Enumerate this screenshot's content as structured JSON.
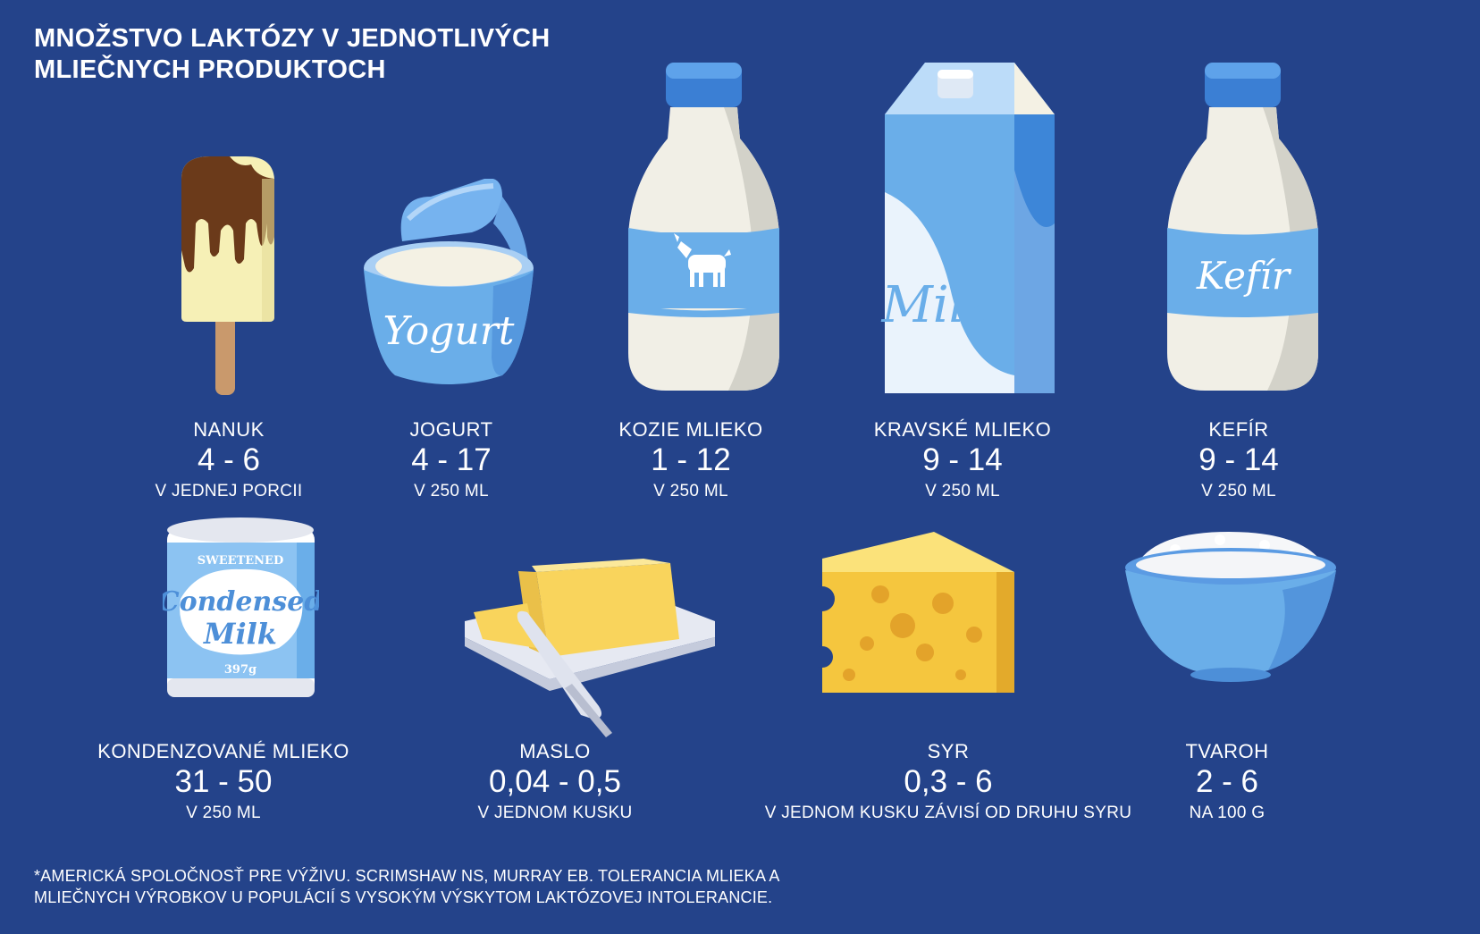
{
  "title": {
    "line1": "MNOŽSTVO LAKTÓZY V JEDNOTLIVÝCH",
    "line2": "MLIEČNYCH PRODUKTOCH"
  },
  "products": [
    {
      "id": "nanuk",
      "name": "NANUK",
      "value": "4 - 6",
      "unit": "V JEDNEJ PORCII",
      "icon": "ice-cream-bar-icon"
    },
    {
      "id": "jogurt",
      "name": "JOGURT",
      "value": "4 - 17",
      "unit": "V 250 ML",
      "icon": "yogurt-cup-icon",
      "art_text": "Yogurt"
    },
    {
      "id": "kozie",
      "name": "KOZIE MLIEKO",
      "value": "1 - 12",
      "unit": "V 250 ML",
      "icon": "goat-milk-bottle-icon"
    },
    {
      "id": "kravske",
      "name": "KRAVSKÉ MLIEKO",
      "value": "9 - 14",
      "unit": "V 250 ML",
      "icon": "milk-carton-icon",
      "art_text": "Milk"
    },
    {
      "id": "kefir",
      "name": "KEFÍR",
      "value": "9 - 14",
      "unit": "V 250 ML",
      "icon": "kefir-bottle-icon",
      "art_text": "Kefír"
    },
    {
      "id": "kondenzovane",
      "name": "KONDENZOVANÉ MLIEKO",
      "value": "31 - 50",
      "unit": "V 250 ML",
      "icon": "condensed-milk-can-icon",
      "art_text_top": "SWEETENED",
      "art_text_main1": "Condensed",
      "art_text_main2": "Milk",
      "art_text_weight": "397g"
    },
    {
      "id": "maslo",
      "name": "MASLO",
      "value": "0,04 - 0,5",
      "unit": "V JEDNOM KUSKU",
      "icon": "butter-dish-icon"
    },
    {
      "id": "syr",
      "name": "SYR",
      "value": "0,3 - 6",
      "unit": "V JEDNOM KUSKU ZÁVISÍ OD DRUHU SYRU",
      "icon": "cheese-wedge-icon"
    },
    {
      "id": "tvaroh",
      "name": "TVAROH",
      "value": "2 - 6",
      "unit": "NA 100 G",
      "icon": "cottage-cheese-bowl-icon"
    }
  ],
  "footnote": {
    "line1": "*AMERICKÁ SPOLOČNOSŤ PRE VÝŽIVU. SCRIMSHAW NS, MURRAY EB. TOLERANCIA MLIEKA A",
    "line2": "MLIEČNYCH VÝROBKOV U POPULÁCIÍ S VYSOKÝM VÝSKYTOM LAKTÓZOVEJ INTOLERANCIE."
  },
  "colors": {
    "background": "#24438a",
    "light_blue": "#6aaee9",
    "mid_blue": "#4d8fd8",
    "cream": "#f4f1e4",
    "chocolate": "#6b3a1a",
    "butter": "#f7d35c",
    "cheese": "#f5c63e"
  }
}
